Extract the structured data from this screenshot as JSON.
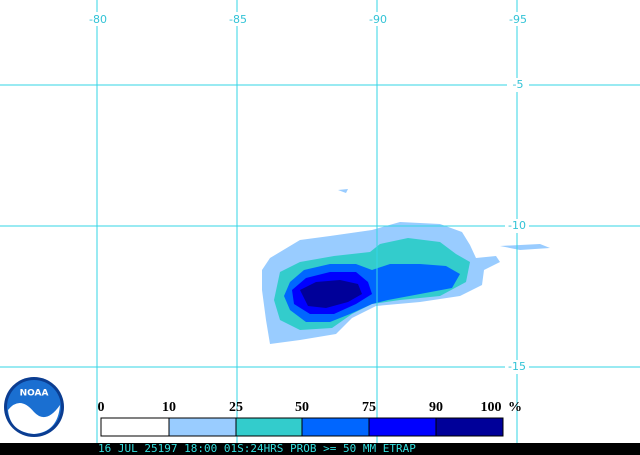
{
  "map": {
    "longitude_labels": [
      -80,
      -85,
      -90,
      -95
    ],
    "latitude_labels": [
      -5,
      -10,
      -15
    ],
    "legend": {
      "labels": [
        0,
        10,
        25,
        50,
        75,
        90,
        100
      ],
      "unit": "%"
    },
    "logo": "NOAA",
    "caption": "16 JUL 25197 18:00 01S:24HRS PROB >= 50 MM ETRAP"
  }
}
